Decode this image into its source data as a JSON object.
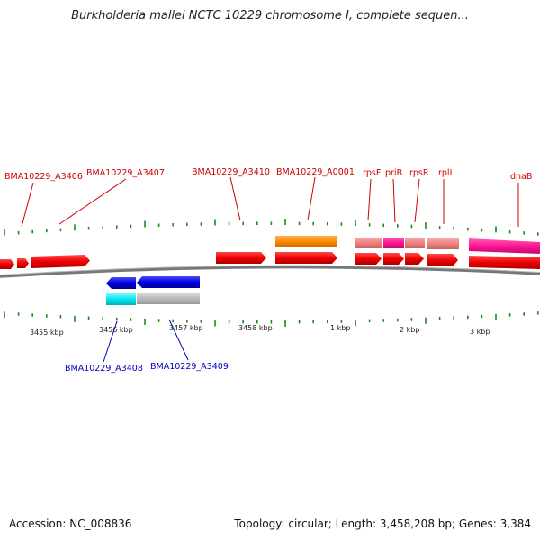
{
  "title": "Burkholderia mallei NCTC 10229 chromosome I, complete sequen...",
  "footer": {
    "accession": "Accession: NC_008836",
    "summary": "Topology: circular; Length: 3,458,208 bp; Genes: 3,384"
  },
  "colors": {
    "cds_forward": "#ee0000",
    "cds_reverse": "#0000dd",
    "gene_orange": "#ff8c00",
    "gene_light_red": "#f08080",
    "gene_magenta": "#ff1493",
    "gene_cyan": "#00e5ee",
    "gene_gray": "#bbbbbb",
    "backbone": "#777777",
    "ticks": "#1a8a1a",
    "label_top": "#cc0000",
    "label_bottom": "#0000b8"
  },
  "top_labels": [
    "BMA10229_A3406",
    "BMA10229_A3407",
    "BMA10229_A3410",
    "BMA10229_A0001",
    "rpsF",
    "priB",
    "rpsR",
    "rplI",
    "dnaB"
  ],
  "bottom_labels": [
    "BMA10229_A3408",
    "BMA10229_A3409"
  ],
  "scale_labels": [
    "3455 kbp",
    "3456 kbp",
    "3457 kbp",
    "3458 kbp",
    "1 kbp",
    "2 kbp",
    "3 kbp"
  ]
}
